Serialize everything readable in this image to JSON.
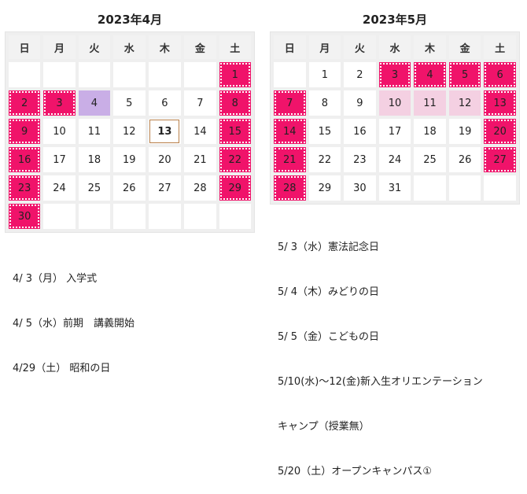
{
  "weekdays": [
    "日",
    "月",
    "火",
    "水",
    "木",
    "金",
    "土"
  ],
  "april": {
    "title": "2023年4月",
    "weeks": [
      [
        "",
        "",
        "",
        "",
        "",
        "",
        "1"
      ],
      [
        "2",
        "3",
        "4",
        "5",
        "6",
        "7",
        "8"
      ],
      [
        "9",
        "10",
        "11",
        "12",
        "13",
        "14",
        "15"
      ],
      [
        "16",
        "17",
        "18",
        "19",
        "20",
        "21",
        "22"
      ],
      [
        "23",
        "24",
        "25",
        "26",
        "27",
        "28",
        "29"
      ],
      [
        "30",
        "",
        "",
        "",
        "",
        "",
        ""
      ]
    ],
    "notes": [
      "4/ 3（月） 入学式",
      "4/ 5（水）前期　講義開始",
      "4/29（土） 昭和の日"
    ]
  },
  "may": {
    "title": "2023年5月",
    "weeks": [
      [
        "",
        "1",
        "2",
        "3",
        "4",
        "5",
        "6"
      ],
      [
        "7",
        "8",
        "9",
        "10",
        "11",
        "12",
        "13"
      ],
      [
        "14",
        "15",
        "16",
        "17",
        "18",
        "19",
        "20"
      ],
      [
        "21",
        "22",
        "23",
        "24",
        "25",
        "26",
        "27"
      ],
      [
        "28",
        "29",
        "30",
        "31",
        "",
        "",
        ""
      ]
    ],
    "notes": [
      "5/ 3（水）憲法記念日",
      "5/ 4（木）みどりの日",
      "5/ 5（金）こどもの日",
      "5/10(水)～12(金)新入生オリエンテーション",
      "キャンプ（授業無）",
      "5/20（土）オープンキャンパス①"
    ]
  },
  "colors": {
    "holiday": "#f0136a",
    "highlight_purple": "#c9aee6",
    "highlight_pink": "#f4d0e2",
    "today_border": "#b9804a"
  }
}
